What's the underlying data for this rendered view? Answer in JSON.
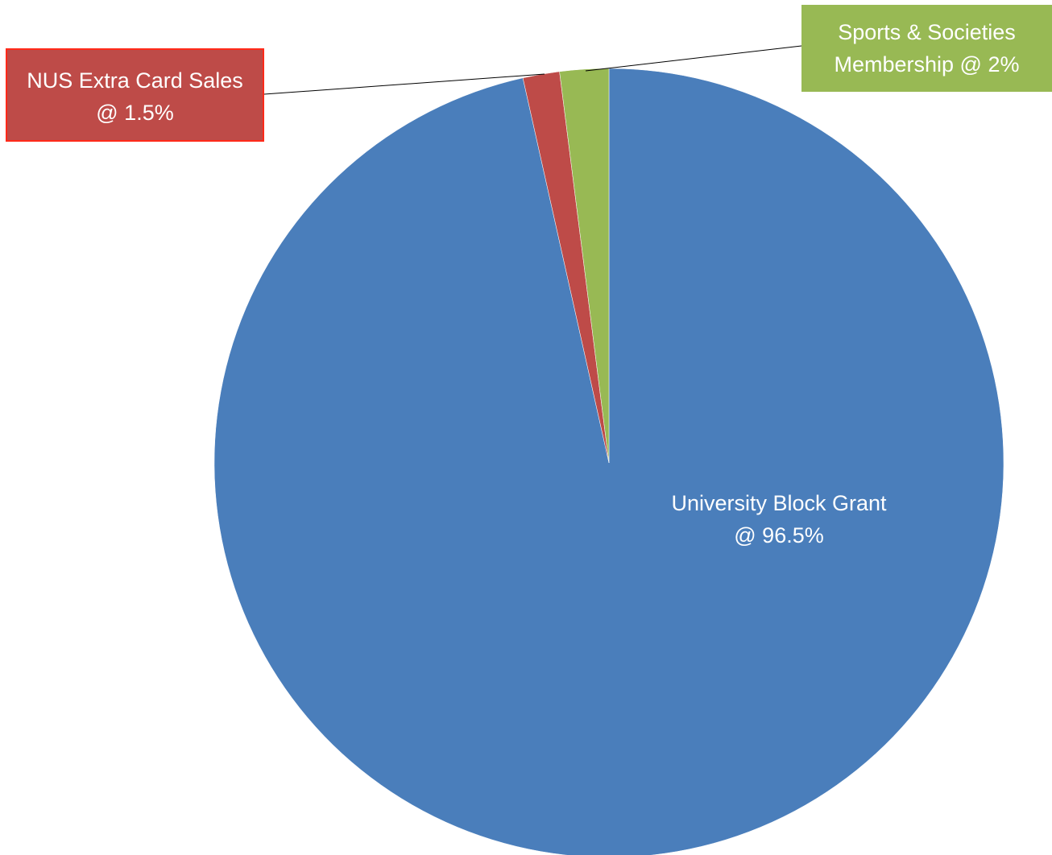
{
  "chart_data": {
    "type": "pie",
    "slices": [
      {
        "key": "grant",
        "label_lines": [
          "University Block Grant",
          "@ 96.5%"
        ],
        "value": 96.5,
        "color": "#4a7ebb"
      },
      {
        "key": "nus",
        "label_lines": [
          "NUS Extra Card Sales",
          "@ 1.5%"
        ],
        "value": 1.5,
        "color": "#be4b48"
      },
      {
        "key": "sports",
        "label_lines": [
          "Sports & Societies",
          "Membership @ 2%"
        ],
        "value": 2,
        "color": "#98b954"
      }
    ],
    "legend": "none"
  }
}
